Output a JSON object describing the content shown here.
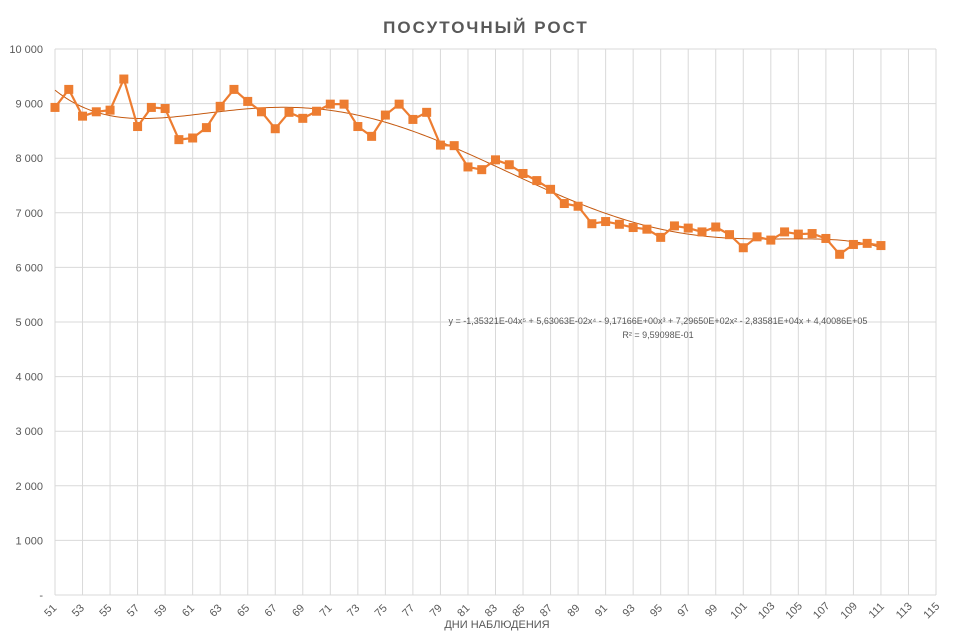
{
  "chart_data": {
    "type": "line",
    "title": "ПОСУТОЧНЫЙ РОСТ",
    "xlabel": "ДНИ НАБЛЮДЕНИЯ",
    "ylabel": "",
    "xlim": [
      51,
      115
    ],
    "ylim": [
      0,
      10000
    ],
    "y_ticks": [
      {
        "value": 0,
        "label": "-"
      },
      {
        "value": 1000,
        "label": "1 000"
      },
      {
        "value": 2000,
        "label": "2 000"
      },
      {
        "value": 3000,
        "label": "3 000"
      },
      {
        "value": 4000,
        "label": "4 000"
      },
      {
        "value": 5000,
        "label": "5 000"
      },
      {
        "value": 6000,
        "label": "6 000"
      },
      {
        "value": 7000,
        "label": "7 000"
      },
      {
        "value": 8000,
        "label": "8 000"
      },
      {
        "value": 9000,
        "label": "9 000"
      },
      {
        "value": 10000,
        "label": "10 000"
      }
    ],
    "x_ticks": [
      "51",
      "53",
      "55",
      "57",
      "59",
      "61",
      "63",
      "65",
      "67",
      "69",
      "71",
      "73",
      "75",
      "77",
      "79",
      "81",
      "83",
      "85",
      "87",
      "89",
      "91",
      "93",
      "95",
      "97",
      "99",
      "101",
      "103",
      "105",
      "107",
      "109",
      "111",
      "113",
      "115"
    ],
    "grid": true,
    "colors": {
      "series": "#ed7d31",
      "trend": "#c55a11",
      "grid": "#d9d9d9"
    },
    "series": [
      {
        "x": [
          51,
          52,
          53,
          54,
          55,
          56,
          57,
          58,
          59,
          60,
          61,
          62,
          63,
          64,
          65,
          66,
          67,
          68,
          69,
          70,
          71,
          72,
          73,
          74,
          75,
          76,
          77,
          78,
          79,
          80,
          81,
          82,
          83,
          84,
          85,
          86,
          87,
          88,
          89,
          90,
          91,
          92,
          93,
          94,
          95,
          96,
          97,
          98,
          99,
          100,
          101,
          102,
          103,
          104,
          105,
          106,
          107,
          108,
          109,
          110,
          111
        ],
        "values": [
          8930,
          9260,
          8770,
          8850,
          8880,
          9450,
          8580,
          8930,
          8910,
          8340,
          8370,
          8560,
          8950,
          9260,
          9040,
          8850,
          8540,
          8840,
          8730,
          8860,
          8990,
          8990,
          8580,
          8400,
          8790,
          8990,
          8710,
          8840,
          8240,
          8230,
          7840,
          7790,
          7970,
          7880,
          7720,
          7590,
          7430,
          7170,
          7120,
          6800,
          6840,
          6790,
          6730,
          6700,
          6550,
          6760,
          6720,
          6650,
          6740,
          6600,
          6360,
          6560,
          6500,
          6650,
          6610,
          6620,
          6530,
          6240,
          6420,
          6440,
          6400
        ]
      }
    ],
    "trendline": {
      "type": "polynomial",
      "equation": "y = -1,35321E-04x⁵ + 5,63063E-02x⁴ - 9,17166E+00x³ + 7,29650E+02x² - 2,83581E+04x + 4,40086E+05",
      "r_squared": "R² = 9,59098E-01",
      "coefficients": [
        -0.000135321,
        0.0563063,
        -9.17166,
        729.65,
        -28358.1,
        440086
      ]
    }
  }
}
